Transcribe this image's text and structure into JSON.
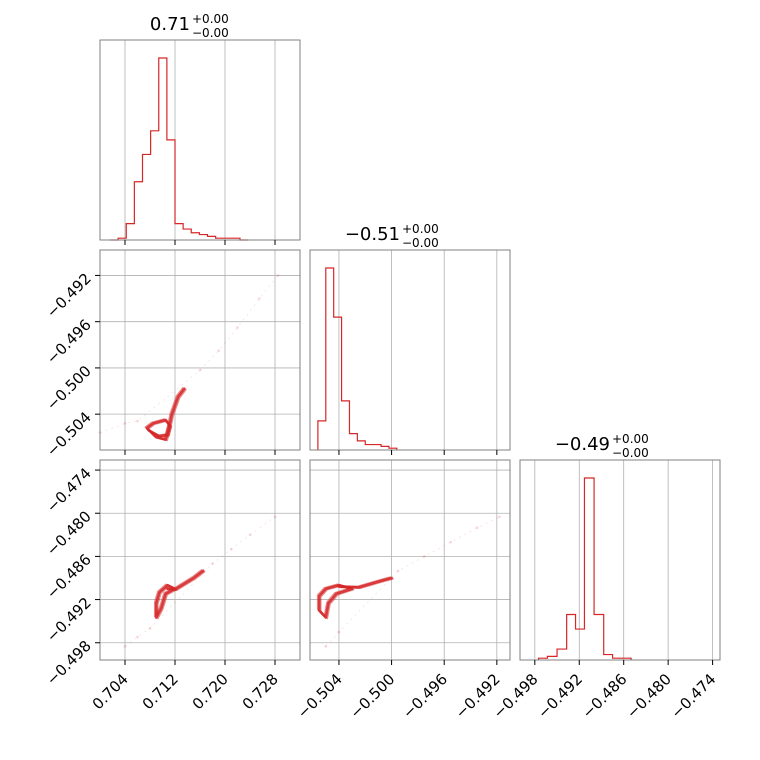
{
  "colors": {
    "accent": "#d62728",
    "grid": "#b0b0b0",
    "frame": "#808080"
  },
  "chart_data": [
    {
      "type": "histogram",
      "panel": "0-0",
      "title_main": "0.71",
      "title_plus": "+0.00",
      "title_minus": "−0.00",
      "x_range": [
        0.7,
        0.732
      ],
      "bin_edges": [
        0.7016,
        0.7029,
        0.7042,
        0.7055,
        0.7068,
        0.7081,
        0.7094,
        0.7107,
        0.712,
        0.7133,
        0.7146,
        0.7159,
        0.7172,
        0.7185,
        0.7198,
        0.7211,
        0.7224,
        0.7237
      ],
      "counts": [
        0,
        1,
        9,
        32,
        47,
        60,
        100,
        55,
        9,
        6,
        4,
        3,
        2,
        1,
        1,
        1,
        0
      ],
      "grid_x": [
        0.704,
        0.712,
        0.72,
        0.728
      ]
    },
    {
      "type": "histogram",
      "panel": "1-1",
      "title_main": "−0.51",
      "title_plus": "+0.00",
      "title_minus": "−0.00",
      "x_range": [
        -0.5062,
        -0.491
      ],
      "bin_edges": [
        -0.5056,
        -0.505,
        -0.5044,
        -0.5038,
        -0.5032,
        -0.5026,
        -0.502,
        -0.5014,
        -0.5008,
        -0.5002,
        -0.4996
      ],
      "counts": [
        16,
        100,
        73,
        27,
        9,
        5,
        3,
        3,
        2,
        1
      ],
      "grid_x": [
        -0.504,
        -0.5,
        -0.496,
        -0.492
      ]
    },
    {
      "type": "histogram",
      "panel": "2-2",
      "title_main": "−0.49",
      "title_plus": "+0.00",
      "title_minus": "−0.00",
      "x_range": [
        -0.5,
        -0.473
      ],
      "bin_edges": [
        -0.4975,
        -0.4963,
        -0.495,
        -0.4937,
        -0.4925,
        -0.4913,
        -0.49,
        -0.4887,
        -0.4875,
        -0.4863,
        -0.485
      ],
      "counts": [
        1,
        2,
        6,
        25,
        17,
        100,
        25,
        3,
        1,
        1
      ],
      "grid_x": [
        -0.498,
        -0.492,
        -0.486,
        -0.48,
        -0.474
      ]
    },
    {
      "type": "contour",
      "panel": "1-0",
      "x_range": [
        0.7,
        0.732
      ],
      "y_range": [
        -0.5071,
        -0.4898
      ],
      "grid_x": [
        0.704,
        0.712,
        0.72,
        0.728
      ],
      "grid_y": [
        -0.492,
        -0.496,
        -0.5,
        -0.504
      ],
      "contours": [
        [
          [
            0.7075,
            -0.5052
          ],
          [
            0.709,
            -0.506
          ],
          [
            0.7105,
            -0.5062
          ],
          [
            0.7112,
            -0.505
          ],
          [
            0.7105,
            -0.5045
          ],
          [
            0.7085,
            -0.5048
          ],
          [
            0.7075,
            -0.5052
          ]
        ],
        [
          [
            0.7078,
            -0.5054
          ],
          [
            0.7095,
            -0.5059
          ],
          [
            0.7108,
            -0.5058
          ],
          [
            0.7115,
            -0.504
          ],
          [
            0.7125,
            -0.5025
          ],
          [
            0.7135,
            -0.5018
          ]
        ]
      ],
      "scatter_trail": [
        [
          0.7,
          -0.5056
        ],
        [
          0.704,
          -0.5048
        ],
        [
          0.706,
          -0.5046
        ],
        [
          0.716,
          -0.5002
        ],
        [
          0.719,
          -0.4985
        ],
        [
          0.722,
          -0.4965
        ],
        [
          0.7255,
          -0.494
        ],
        [
          0.7285,
          -0.492
        ]
      ]
    },
    {
      "type": "contour",
      "panel": "2-0",
      "x_range": [
        0.7,
        0.732
      ],
      "y_range": [
        -0.5004,
        -0.4726
      ],
      "grid_x": [
        0.704,
        0.712,
        0.72,
        0.728
      ],
      "grid_y": [
        -0.474,
        -0.48,
        -0.486,
        -0.492,
        -0.498
      ],
      "contours": [
        [
          [
            0.709,
            -0.4945
          ],
          [
            0.709,
            -0.4925
          ],
          [
            0.7095,
            -0.491
          ],
          [
            0.7108,
            -0.49
          ],
          [
            0.712,
            -0.4905
          ],
          [
            0.7105,
            -0.4912
          ],
          [
            0.7098,
            -0.4932
          ],
          [
            0.709,
            -0.4945
          ]
        ],
        [
          [
            0.7108,
            -0.4905
          ],
          [
            0.712,
            -0.4906
          ],
          [
            0.7135,
            -0.4898
          ],
          [
            0.715,
            -0.489
          ],
          [
            0.7165,
            -0.488
          ]
        ]
      ],
      "scatter_trail": [
        [
          0.704,
          -0.4985
        ],
        [
          0.706,
          -0.4972
        ],
        [
          0.708,
          -0.496
        ],
        [
          0.718,
          -0.487
        ],
        [
          0.721,
          -0.485
        ],
        [
          0.724,
          -0.483
        ],
        [
          0.728,
          -0.4805
        ]
      ]
    },
    {
      "type": "contour",
      "panel": "2-1",
      "x_range": [
        -0.5062,
        -0.491
      ],
      "y_range": [
        -0.5004,
        -0.4726
      ],
      "grid_x": [
        -0.504,
        -0.5,
        -0.496,
        -0.492
      ],
      "grid_y": [
        -0.474,
        -0.48,
        -0.486,
        -0.492,
        -0.498
      ],
      "contours": [
        [
          [
            -0.5055,
            -0.4935
          ],
          [
            -0.5055,
            -0.4915
          ],
          [
            -0.505,
            -0.4905
          ],
          [
            -0.504,
            -0.49
          ],
          [
            -0.503,
            -0.4905
          ],
          [
            -0.5042,
            -0.4912
          ],
          [
            -0.5048,
            -0.4925
          ],
          [
            -0.505,
            -0.4945
          ],
          [
            -0.5055,
            -0.4935
          ]
        ],
        [
          [
            -0.504,
            -0.4902
          ],
          [
            -0.5025,
            -0.4903
          ],
          [
            -0.501,
            -0.4895
          ],
          [
            -0.5,
            -0.489
          ]
        ]
      ],
      "scatter_trail": [
        [
          -0.505,
          -0.4985
        ],
        [
          -0.504,
          -0.4965
        ],
        [
          -0.4995,
          -0.488
        ],
        [
          -0.4975,
          -0.486
        ],
        [
          -0.4955,
          -0.484
        ],
        [
          -0.4935,
          -0.482
        ],
        [
          -0.4918,
          -0.4805
        ]
      ]
    }
  ],
  "ticks": {
    "col0_x": [
      "0.704",
      "0.712",
      "0.720",
      "0.728"
    ],
    "col1_x": [
      "−0.504",
      "−0.500",
      "−0.496",
      "−0.492"
    ],
    "col2_x": [
      "−0.498",
      "−0.492",
      "−0.486",
      "−0.480",
      "−0.474"
    ],
    "row1_y": [
      "−0.492",
      "−0.496",
      "−0.500",
      "−0.504"
    ],
    "row2_y": [
      "−0.474",
      "−0.480",
      "−0.486",
      "−0.492",
      "−0.498"
    ]
  }
}
